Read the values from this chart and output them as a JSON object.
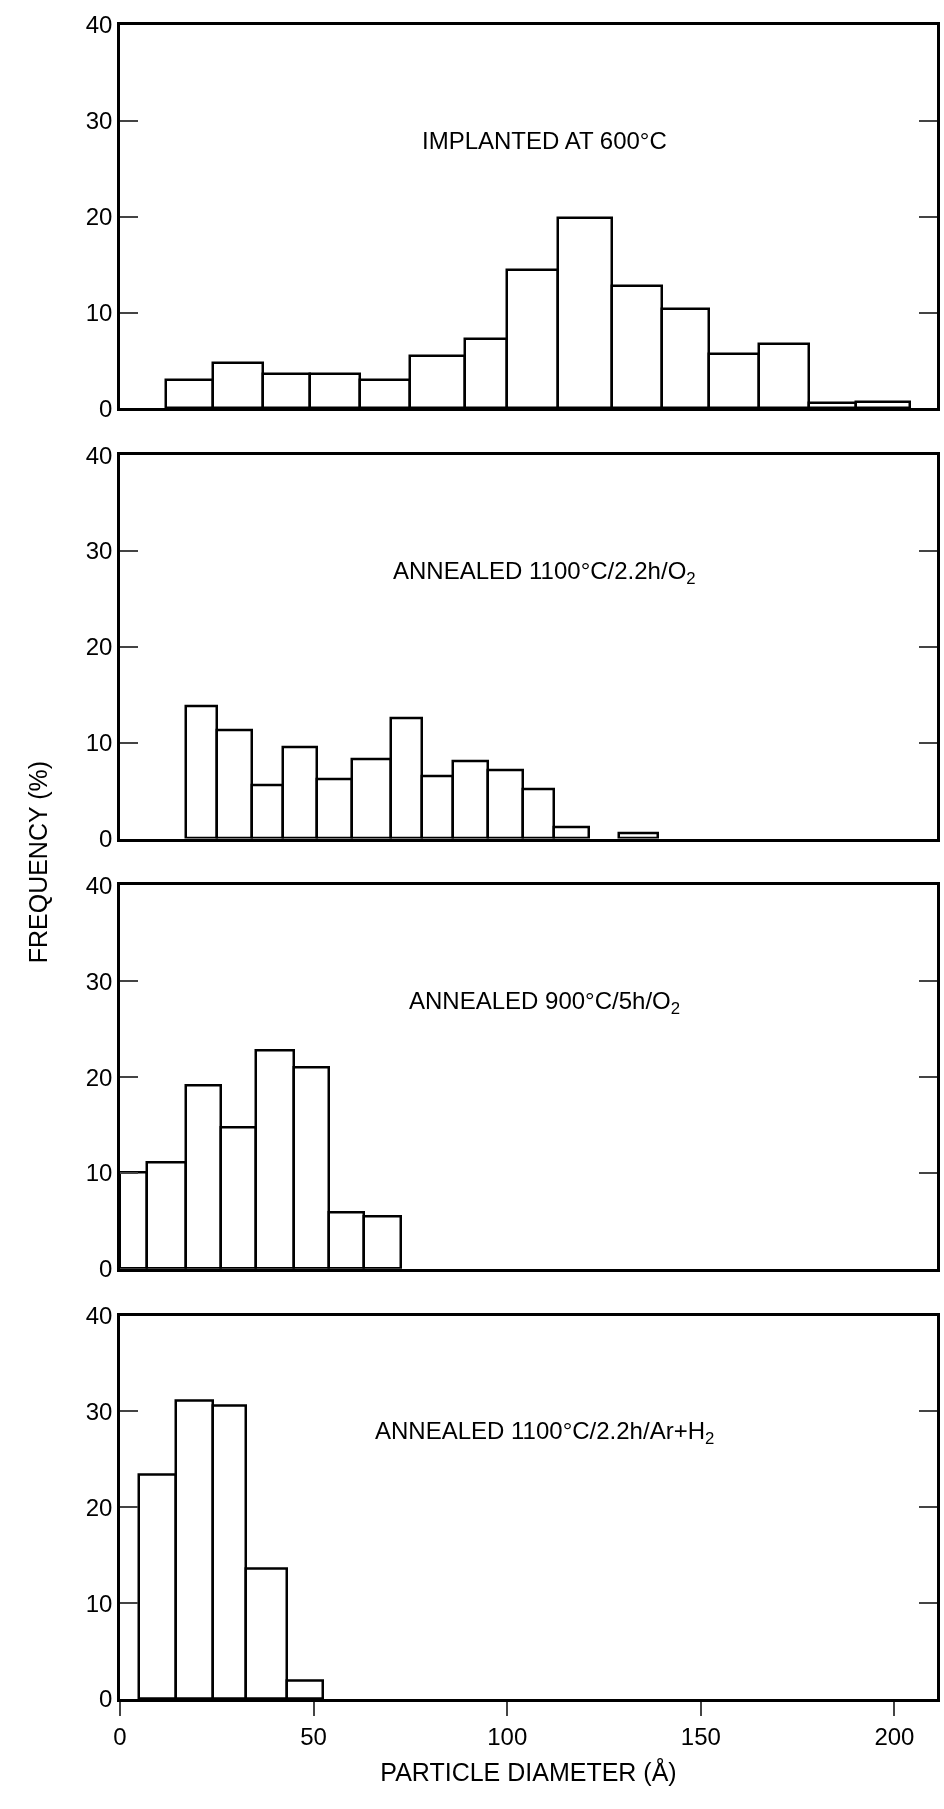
{
  "chart_data": [
    {
      "type": "histogram",
      "title": "IMPLANTED AT 600°C",
      "color": "#ffffff",
      "bins": [
        12,
        24,
        37,
        49,
        62,
        75,
        89,
        100,
        113,
        127,
        140,
        152,
        165,
        178,
        190,
        204
      ],
      "values": [
        3.0,
        4.7,
        3.6,
        3.6,
        3.0,
        5.5,
        7.2,
        14.4,
        19.9,
        12.8,
        10.4,
        5.7,
        6.7,
        0.6,
        0.7
      ],
      "xlim": [
        0,
        211
      ],
      "ylim": [
        0,
        40
      ],
      "yticks": [
        0,
        10,
        20,
        30,
        40
      ],
      "tick_labels": "y"
    },
    {
      "type": "histogram",
      "title": "ANNEALED 1100°C/2.2h/O$_{2}$",
      "ylabel": "FREQUENCY (%)",
      "color": "#ffffff",
      "bins": [
        17,
        25,
        34,
        42,
        51,
        60,
        70,
        78,
        86,
        95,
        104,
        112,
        121,
        129,
        139
      ],
      "values": [
        13.8,
        11.3,
        5.6,
        9.5,
        6.2,
        8.3,
        12.6,
        6.5,
        8.1,
        7.1,
        5.1,
        1.2,
        null,
        0.6
      ],
      "xlim": [
        0,
        211
      ],
      "ylim": [
        0,
        40
      ],
      "yticks": [
        0,
        10,
        20,
        30,
        40
      ],
      "tick_labels": "y"
    },
    {
      "type": "histogram",
      "title": "ANNEALED 900°C/5h/O$_{2}$",
      "color": "#ffffff",
      "bins": [
        0,
        7,
        17,
        26,
        35,
        45,
        54,
        63,
        72.5
      ],
      "values": [
        10.1,
        11.1,
        19.1,
        14.8,
        22.8,
        21.0,
        5.9,
        5.5
      ],
      "xlim": [
        0,
        211
      ],
      "ylim": [
        0,
        40
      ],
      "yticks": [
        0,
        10,
        20,
        30,
        40
      ],
      "tick_labels": "y"
    },
    {
      "type": "histogram",
      "title": "ANNEALED 1100°C/2.2h/Ar+H$_{2}$",
      "xlabel": "PARTICLE DIAMETER (Å)",
      "color": "#ffffff",
      "bins": [
        5,
        14.5,
        24,
        32.5,
        43,
        52.5
      ],
      "values": [
        23.4,
        31.1,
        30.6,
        13.6,
        1.9
      ],
      "xlim": [
        0,
        211
      ],
      "xticks": [
        0,
        50,
        100,
        150,
        200
      ],
      "ylim": [
        0,
        40
      ],
      "yticks": [
        0,
        10,
        20,
        30,
        40
      ]
    }
  ]
}
